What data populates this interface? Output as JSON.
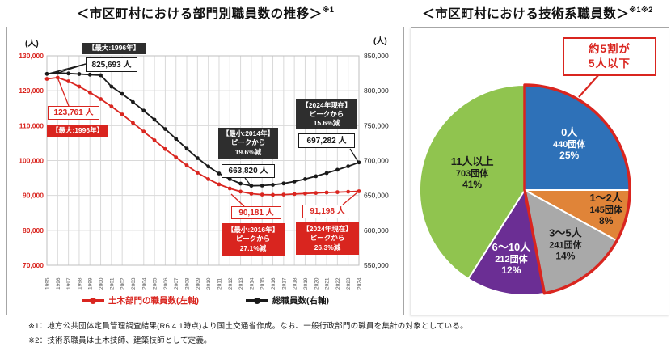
{
  "page": {
    "background": "#ffffff",
    "left_title": {
      "text": "＜市区町村における部門別職員数の推移＞",
      "sup": "※1"
    },
    "right_title": {
      "text": "＜市区町村における技術系職員数＞",
      "sup": "※1※2"
    },
    "footnotes": [
      "※1：地方公共団体定員管理調査結果(R6.4.1時点)より国土交通省作成。なお、一般行政部門の職員を集計の対象としている。",
      "※2：技術系職員は土木技師、建築技師として定義。"
    ]
  },
  "colors": {
    "accent_red": "#d9251f",
    "line_black": "#1a1a1a",
    "grid": "#d9d9d9",
    "plot_border": "#bfbfbf",
    "panel_border": "#a6a6a6",
    "axis_left_text": "#d9251f",
    "axis_right_text": "#1a1a1a",
    "year_text": "#595959"
  },
  "chart_data": [
    {
      "type": "line",
      "title": "＜市区町村における部門別職員数の推移＞※1",
      "x": [
        1995,
        1996,
        1997,
        1998,
        1999,
        2000,
        2001,
        2002,
        2003,
        2004,
        2005,
        2006,
        2007,
        2008,
        2009,
        2010,
        2011,
        2012,
        2013,
        2014,
        2015,
        2016,
        2017,
        2018,
        2019,
        2020,
        2021,
        2022,
        2023,
        2024
      ],
      "y_left": {
        "unit": "(人)",
        "min": 70000,
        "max": 130000,
        "step": 10000
      },
      "y_right": {
        "unit": "(人)",
        "min": 550000,
        "max": 850000,
        "step": 50000
      },
      "grid": true,
      "legend_position": "bottom",
      "series": [
        {
          "name": "土木部門の職員数(左軸)",
          "axis": "left",
          "color": "#d9251f",
          "values": [
            123400,
            123761,
            122700,
            121200,
            119500,
            117600,
            115500,
            113200,
            110800,
            108300,
            105800,
            103300,
            100900,
            98600,
            96500,
            94700,
            93200,
            92000,
            91100,
            90500,
            90250,
            90181,
            90250,
            90400,
            90550,
            90700,
            90850,
            90950,
            91050,
            91198
          ]
        },
        {
          "name": "総職員数(右軸)",
          "axis": "right",
          "color": "#1a1a1a",
          "values": [
            824200,
            825693,
            824800,
            823900,
            823000,
            822200,
            806000,
            795500,
            783800,
            771500,
            758500,
            745000,
            731000,
            717000,
            703500,
            691500,
            681500,
            673500,
            667000,
            663820,
            664200,
            665300,
            667200,
            670000,
            673500,
            677500,
            682000,
            686800,
            691800,
            697282
          ]
        }
      ],
      "annotations": [
        {
          "id": "total-max-label",
          "style": "dark",
          "lines": [
            "【最大:1996年】"
          ]
        },
        {
          "id": "total-max-value",
          "style": "outline-dark",
          "lines": [
            "825,693 人"
          ]
        },
        {
          "id": "civil-max-value",
          "style": "outline-red",
          "lines": [
            "123,761 人"
          ]
        },
        {
          "id": "civil-max-label",
          "style": "red",
          "lines": [
            "【最大:1996年】"
          ]
        },
        {
          "id": "total-min-label",
          "style": "dark",
          "lines": [
            "【最小:2014年】",
            "ピークから",
            "19.6%減"
          ]
        },
        {
          "id": "total-min-value",
          "style": "outline-dark",
          "lines": [
            "663,820 人"
          ]
        },
        {
          "id": "total-2024-label",
          "style": "dark",
          "lines": [
            "【2024年現在】",
            "ピークから",
            "15.6%減"
          ]
        },
        {
          "id": "total-2024-value",
          "style": "outline-dark",
          "lines": [
            "697,282 人"
          ]
        },
        {
          "id": "civil-min-value",
          "style": "outline-red",
          "lines": [
            "90,181 人"
          ]
        },
        {
          "id": "civil-min-label",
          "style": "red",
          "lines": [
            "【最小:2016年】",
            "ピークから",
            "27.1%減"
          ]
        },
        {
          "id": "civil-2024-value",
          "style": "outline-red",
          "lines": [
            "91,198 人"
          ]
        },
        {
          "id": "civil-2024-label",
          "style": "red",
          "lines": [
            "【2024年現在】",
            "ピークから",
            "26.3%減"
          ]
        }
      ]
    },
    {
      "type": "pie",
      "title": "＜市区町村における技術系職員数＞※1※2",
      "start_angle": "top",
      "direction": "clockwise",
      "slices": [
        {
          "label": "0人",
          "count": "440団体",
          "pct": 25,
          "pct_label": "25%",
          "color": "#2e71b8",
          "text_color": "#ffffff"
        },
        {
          "label": "1〜2人",
          "count": "145団体",
          "pct": 8,
          "pct_label": "8%",
          "color": "#e08438",
          "text_color": "#1a1a1a"
        },
        {
          "label": "3〜5人",
          "count": "241団体",
          "pct": 14,
          "pct_label": "14%",
          "color": "#a9a9a9",
          "text_color": "#1a1a1a"
        },
        {
          "label": "6〜10人",
          "count": "212団体",
          "pct": 12,
          "pct_label": "12%",
          "color": "#6b2e94",
          "text_color": "#ffffff"
        },
        {
          "label": "11人以上",
          "count": "703団体",
          "pct": 41,
          "pct_label": "41%",
          "color": "#90c44f",
          "text_color": "#1a1a1a"
        }
      ],
      "highlight": {
        "lines": [
          "約5割が",
          "5人以下"
        ],
        "covers_slices": [
          "0人",
          "1〜2人",
          "3〜5人"
        ],
        "covers_pct": 47,
        "color": "#d9251f"
      }
    }
  ]
}
